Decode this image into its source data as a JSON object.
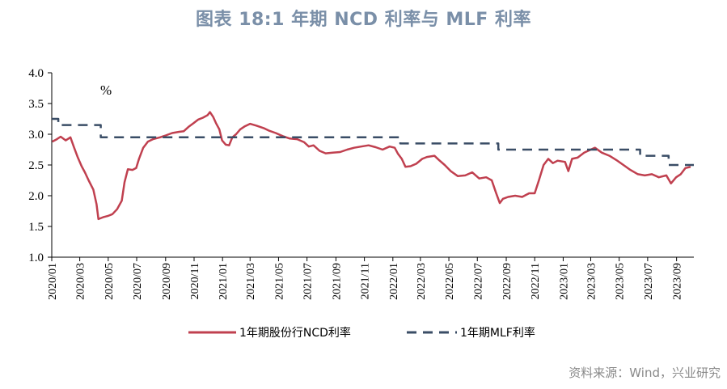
{
  "chart_data": {
    "type": "line",
    "title": "图表 18:1 年期 NCD 利率与 MLF 利率",
    "unit": "%",
    "ylim": [
      1.0,
      4.0
    ],
    "yticks": [
      "1.0",
      "1.5",
      "2.0",
      "2.5",
      "3.0",
      "3.5",
      "4.0"
    ],
    "xlim": [
      "2020-01-01",
      "2023-10-08"
    ],
    "xtick_labels": [
      "2020/01",
      "2020/03",
      "2020/05",
      "2020/07",
      "2020/09",
      "2020/11",
      "2021/01",
      "2021/03",
      "2021/05",
      "2021/07",
      "2021/09",
      "2021/11",
      "2022/01",
      "2022/03",
      "2022/05",
      "2022/07",
      "2022/09",
      "2022/11",
      "2023/01",
      "2023/03",
      "2023/05",
      "2023/07",
      "2023/09"
    ],
    "xtick_dates": [
      "2020-01-01",
      "2020-03-01",
      "2020-05-01",
      "2020-07-01",
      "2020-09-01",
      "2020-11-01",
      "2021-01-01",
      "2021-03-01",
      "2021-05-01",
      "2021-07-01",
      "2021-09-01",
      "2021-11-01",
      "2022-01-01",
      "2022-03-01",
      "2022-05-01",
      "2022-07-01",
      "2022-09-01",
      "2022-11-01",
      "2023-01-01",
      "2023-03-01",
      "2023-05-01",
      "2023-07-01",
      "2023-09-01"
    ],
    "grid": false,
    "legend_position": "bottom",
    "series": [
      {
        "name": "1年期股份行NCD利率",
        "color": "#c0404f",
        "style": "solid",
        "points": [
          [
            "2020-01-02",
            2.88
          ],
          [
            "2020-01-10",
            2.91
          ],
          [
            "2020-01-20",
            2.96
          ],
          [
            "2020-01-31",
            2.9
          ],
          [
            "2020-02-10",
            2.95
          ],
          [
            "2020-02-18",
            2.78
          ],
          [
            "2020-02-26",
            2.62
          ],
          [
            "2020-03-05",
            2.48
          ],
          [
            "2020-03-12",
            2.38
          ],
          [
            "2020-03-20",
            2.25
          ],
          [
            "2020-03-30",
            2.1
          ],
          [
            "2020-04-06",
            1.86
          ],
          [
            "2020-04-10",
            1.62
          ],
          [
            "2020-04-20",
            1.65
          ],
          [
            "2020-04-30",
            1.67
          ],
          [
            "2020-05-10",
            1.7
          ],
          [
            "2020-05-20",
            1.78
          ],
          [
            "2020-05-30",
            1.92
          ],
          [
            "2020-06-05",
            2.22
          ],
          [
            "2020-06-12",
            2.43
          ],
          [
            "2020-06-22",
            2.42
          ],
          [
            "2020-06-30",
            2.45
          ],
          [
            "2020-07-06",
            2.6
          ],
          [
            "2020-07-15",
            2.78
          ],
          [
            "2020-07-25",
            2.88
          ],
          [
            "2020-08-05",
            2.92
          ],
          [
            "2020-08-20",
            2.95
          ],
          [
            "2020-09-01",
            2.98
          ],
          [
            "2020-09-15",
            3.02
          ],
          [
            "2020-09-30",
            3.04
          ],
          [
            "2020-10-10",
            3.05
          ],
          [
            "2020-10-20",
            3.12
          ],
          [
            "2020-10-31",
            3.18
          ],
          [
            "2020-11-10",
            3.24
          ],
          [
            "2020-11-20",
            3.27
          ],
          [
            "2020-11-30",
            3.31
          ],
          [
            "2020-12-05",
            3.36
          ],
          [
            "2020-12-12",
            3.28
          ],
          [
            "2020-12-18",
            3.18
          ],
          [
            "2020-12-25",
            3.08
          ],
          [
            "2020-12-31",
            2.9
          ],
          [
            "2021-01-08",
            2.83
          ],
          [
            "2021-01-15",
            2.82
          ],
          [
            "2021-01-22",
            2.95
          ],
          [
            "2021-01-30",
            3.0
          ],
          [
            "2021-02-08",
            3.08
          ],
          [
            "2021-02-18",
            3.13
          ],
          [
            "2021-03-01",
            3.17
          ],
          [
            "2021-03-15",
            3.14
          ],
          [
            "2021-03-30",
            3.1
          ],
          [
            "2021-04-10",
            3.06
          ],
          [
            "2021-04-25",
            3.02
          ],
          [
            "2021-05-10",
            2.97
          ],
          [
            "2021-05-25",
            2.93
          ],
          [
            "2021-06-10",
            2.92
          ],
          [
            "2021-06-25",
            2.87
          ],
          [
            "2021-07-05",
            2.8
          ],
          [
            "2021-07-15",
            2.82
          ],
          [
            "2021-07-28",
            2.73
          ],
          [
            "2021-08-10",
            2.69
          ],
          [
            "2021-08-25",
            2.7
          ],
          [
            "2021-09-10",
            2.71
          ],
          [
            "2021-09-25",
            2.75
          ],
          [
            "2021-10-10",
            2.78
          ],
          [
            "2021-10-25",
            2.8
          ],
          [
            "2021-11-10",
            2.82
          ],
          [
            "2021-11-25",
            2.79
          ],
          [
            "2021-12-10",
            2.75
          ],
          [
            "2021-12-25",
            2.8
          ],
          [
            "2022-01-05",
            2.78
          ],
          [
            "2022-01-12",
            2.68
          ],
          [
            "2022-01-20",
            2.6
          ],
          [
            "2022-01-28",
            2.47
          ],
          [
            "2022-02-08",
            2.48
          ],
          [
            "2022-02-20",
            2.52
          ],
          [
            "2022-03-05",
            2.6
          ],
          [
            "2022-03-15",
            2.63
          ],
          [
            "2022-03-31",
            2.65
          ],
          [
            "2022-04-10",
            2.58
          ],
          [
            "2022-04-22",
            2.5
          ],
          [
            "2022-05-05",
            2.4
          ],
          [
            "2022-05-20",
            2.32
          ],
          [
            "2022-06-05",
            2.33
          ],
          [
            "2022-06-20",
            2.38
          ],
          [
            "2022-07-05",
            2.28
          ],
          [
            "2022-07-20",
            2.3
          ],
          [
            "2022-08-01",
            2.25
          ],
          [
            "2022-08-10",
            2.05
          ],
          [
            "2022-08-18",
            1.88
          ],
          [
            "2022-08-25",
            1.95
          ],
          [
            "2022-09-05",
            1.98
          ],
          [
            "2022-09-20",
            2.0
          ],
          [
            "2022-10-05",
            1.98
          ],
          [
            "2022-10-20",
            2.04
          ],
          [
            "2022-11-01",
            2.04
          ],
          [
            "2022-11-10",
            2.25
          ],
          [
            "2022-11-20",
            2.5
          ],
          [
            "2022-11-30",
            2.6
          ],
          [
            "2022-12-10",
            2.53
          ],
          [
            "2022-12-20",
            2.57
          ],
          [
            "2023-01-05",
            2.55
          ],
          [
            "2023-01-12",
            2.4
          ],
          [
            "2023-01-20",
            2.6
          ],
          [
            "2023-02-01",
            2.62
          ],
          [
            "2023-02-15",
            2.7
          ],
          [
            "2023-03-01",
            2.75
          ],
          [
            "2023-03-10",
            2.78
          ],
          [
            "2023-03-25",
            2.7
          ],
          [
            "2023-04-10",
            2.65
          ],
          [
            "2023-04-25",
            2.58
          ],
          [
            "2023-05-10",
            2.5
          ],
          [
            "2023-05-25",
            2.42
          ],
          [
            "2023-06-10",
            2.35
          ],
          [
            "2023-06-25",
            2.33
          ],
          [
            "2023-07-10",
            2.35
          ],
          [
            "2023-07-25",
            2.3
          ],
          [
            "2023-08-10",
            2.33
          ],
          [
            "2023-08-20",
            2.2
          ],
          [
            "2023-08-31",
            2.3
          ],
          [
            "2023-09-10",
            2.35
          ],
          [
            "2023-09-20",
            2.45
          ],
          [
            "2023-10-01",
            2.47
          ]
        ]
      },
      {
        "name": "1年期MLF利率",
        "color": "#3a4d66",
        "style": "dashed",
        "points": [
          [
            "2020-01-01",
            3.25
          ],
          [
            "2020-01-15",
            3.25
          ],
          [
            "2020-01-15",
            3.15
          ],
          [
            "2020-04-15",
            3.15
          ],
          [
            "2020-04-15",
            2.95
          ],
          [
            "2022-01-17",
            2.95
          ],
          [
            "2022-01-17",
            2.85
          ],
          [
            "2022-08-15",
            2.85
          ],
          [
            "2022-08-15",
            2.75
          ],
          [
            "2023-06-15",
            2.75
          ],
          [
            "2023-06-15",
            2.65
          ],
          [
            "2023-08-15",
            2.65
          ],
          [
            "2023-08-15",
            2.5
          ],
          [
            "2023-10-08",
            2.5
          ]
        ]
      }
    ]
  },
  "source_note": "资料来源：Wind，兴业研究"
}
